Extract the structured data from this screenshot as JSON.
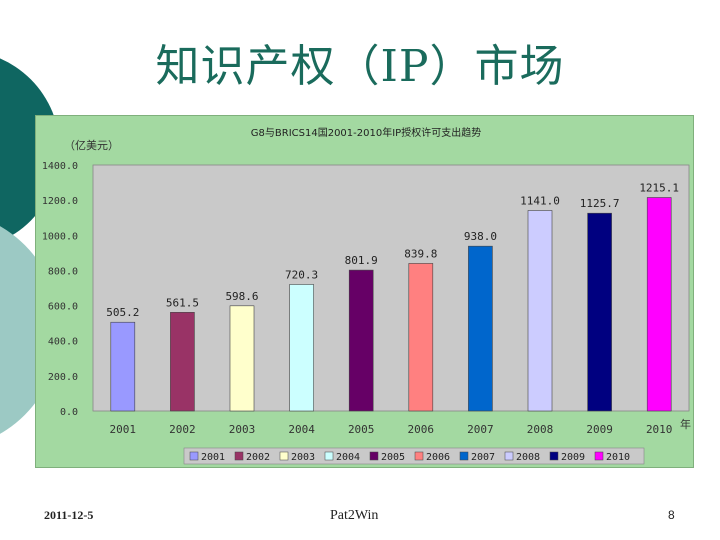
{
  "slide": {
    "title": "知识产权（IP）市场",
    "footer_date": "2011-12-5",
    "footer_brand": "Pat2Win",
    "page_number": "8"
  },
  "colors": {
    "teal_dark": "#0f6661",
    "teal_light": "#9cc9c4",
    "panel_bg": "#a3d9a1",
    "plot_bg": "#c9c9c9",
    "title_color": "#1a6b5c"
  },
  "chart_data": {
    "type": "bar",
    "title": "G8与BRICS14国2001-2010年IP授权许可支出趋势",
    "unit_label": "（亿美元）",
    "x_unit": "年",
    "categories": [
      "2001",
      "2002",
      "2003",
      "2004",
      "2005",
      "2006",
      "2007",
      "2008",
      "2009",
      "2010"
    ],
    "values": [
      505.2,
      561.5,
      598.6,
      720.3,
      801.9,
      839.8,
      938.0,
      1141.0,
      1125.7,
      1215.1
    ],
    "value_labels": [
      "505.2",
      "561.5",
      "598.6",
      "720.3",
      "801.9",
      "839.8",
      "938.0",
      "1141.0",
      "1125.7",
      "1215.1"
    ],
    "bar_colors": [
      "#9999ff",
      "#993366",
      "#ffffcc",
      "#ccffff",
      "#660066",
      "#ff8080",
      "#0066cc",
      "#ccccff",
      "#000080",
      "#ff00ff"
    ],
    "y_ticks": [
      "0.0",
      "200.0",
      "400.0",
      "600.0",
      "800.0",
      "1000.0",
      "1200.0",
      "1400.0"
    ],
    "ylim": [
      0,
      1400
    ],
    "grid": false,
    "legend_position": "bottom",
    "legend": [
      "2001",
      "2002",
      "2003",
      "2004",
      "2005",
      "2006",
      "2007",
      "2008",
      "2009",
      "2010"
    ]
  }
}
